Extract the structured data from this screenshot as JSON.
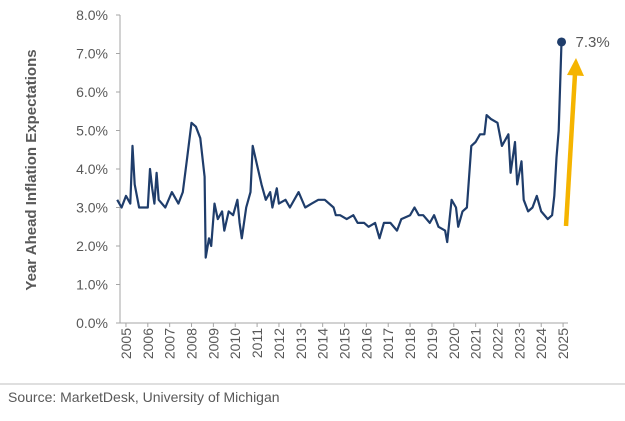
{
  "chart_data": {
    "type": "line",
    "y_axis_label": "Year Ahead Inflation Expectations",
    "source": "Source: MarketDesk, University of Michigan",
    "annotations": [
      {
        "text": "7.3%"
      }
    ],
    "color": "#1f3d6b",
    "x": [
      2004.6,
      2004.8,
      2005.0,
      2005.2,
      2005.3,
      2005.4,
      2005.6,
      2005.8,
      2006.0,
      2006.1,
      2006.2,
      2006.3,
      2006.4,
      2006.5,
      2006.8,
      2007.1,
      2007.4,
      2007.6,
      2007.8,
      2008.0,
      2008.2,
      2008.4,
      2008.6,
      2008.65,
      2008.8,
      2008.9,
      2009.05,
      2009.2,
      2009.4,
      2009.5,
      2009.7,
      2009.9,
      2010.1,
      2010.2,
      2010.3,
      2010.5,
      2010.7,
      2010.8,
      2011.0,
      2011.2,
      2011.4,
      2011.6,
      2011.7,
      2011.9,
      2012.0,
      2012.3,
      2012.5,
      2012.9,
      2013.2,
      2013.5,
      2013.8,
      2014.1,
      2014.5,
      2014.6,
      2014.8,
      2015.1,
      2015.4,
      2015.6,
      2015.9,
      2016.1,
      2016.4,
      2016.6,
      2016.8,
      2017.1,
      2017.4,
      2017.6,
      2018.0,
      2018.2,
      2018.4,
      2018.6,
      2018.9,
      2019.1,
      2019.3,
      2019.6,
      2019.7,
      2019.9,
      2020.1,
      2020.2,
      2020.4,
      2020.6,
      2020.8,
      2021.0,
      2021.2,
      2021.4,
      2021.5,
      2021.7,
      2022.0,
      2022.2,
      2022.5,
      2022.6,
      2022.8,
      2022.9,
      2023.1,
      2023.2,
      2023.4,
      2023.6,
      2023.8,
      2024.0,
      2024.3,
      2024.5,
      2024.6,
      2024.7,
      2024.8,
      2024.93
    ],
    "series": [
      {
        "name": "Year Ahead Inflation Expectations",
        "color": "#1f3d6b",
        "values": [
          3.2,
          3.0,
          3.3,
          3.1,
          4.6,
          3.6,
          3.0,
          3.0,
          3.0,
          4.0,
          3.5,
          3.1,
          3.9,
          3.2,
          3.0,
          3.4,
          3.1,
          3.4,
          4.3,
          5.2,
          5.1,
          4.8,
          3.8,
          1.7,
          2.2,
          2.0,
          3.1,
          2.7,
          2.9,
          2.4,
          2.9,
          2.8,
          3.2,
          2.6,
          2.2,
          3.0,
          3.4,
          4.6,
          4.1,
          3.6,
          3.2,
          3.4,
          3.0,
          3.5,
          3.1,
          3.2,
          3.0,
          3.4,
          3.0,
          3.1,
          3.2,
          3.2,
          3.0,
          2.8,
          2.8,
          2.7,
          2.8,
          2.6,
          2.6,
          2.5,
          2.6,
          2.2,
          2.6,
          2.6,
          2.4,
          2.7,
          2.8,
          3.0,
          2.8,
          2.8,
          2.6,
          2.8,
          2.5,
          2.4,
          2.1,
          3.2,
          3.0,
          2.5,
          2.9,
          3.0,
          4.6,
          4.7,
          4.9,
          4.9,
          5.4,
          5.3,
          5.2,
          4.6,
          4.9,
          3.9,
          4.7,
          3.6,
          4.2,
          3.2,
          2.9,
          3.0,
          3.3,
          2.9,
          2.7,
          2.8,
          3.3,
          4.3,
          5.0,
          7.3
        ]
      }
    ],
    "xlim": [
      2004.7,
      2025.5
    ],
    "xticks": [
      2005,
      2006,
      2007,
      2008,
      2009,
      2010,
      2011,
      2012,
      2013,
      2014,
      2015,
      2016,
      2017,
      2018,
      2019,
      2020,
      2021,
      2022,
      2023,
      2024,
      2025
    ],
    "ylim": [
      0,
      8
    ],
    "yticks": [
      {
        "value": 0,
        "label": "0.0%"
      },
      {
        "value": 1,
        "label": "1.0%"
      },
      {
        "value": 2,
        "label": "2.0%"
      },
      {
        "value": 3,
        "label": "3.0%"
      },
      {
        "value": 4,
        "label": "4.0%"
      },
      {
        "value": 5,
        "label": "5.0%"
      },
      {
        "value": 6,
        "label": "6.0%"
      },
      {
        "value": 7,
        "label": "7.0%"
      },
      {
        "value": 8,
        "label": "8.0%"
      }
    ],
    "grid": false,
    "arrow_color": "#f5b400"
  }
}
